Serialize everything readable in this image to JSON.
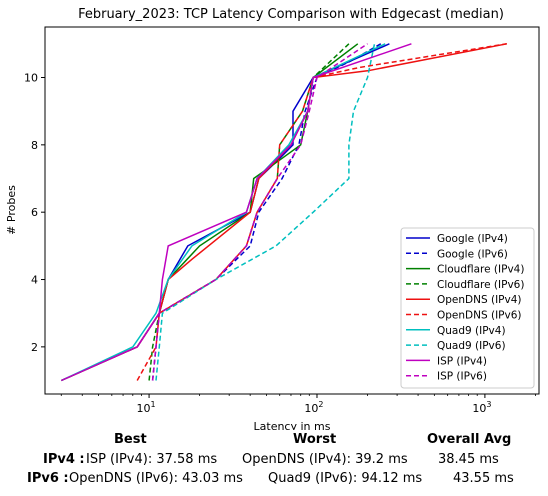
{
  "chart_data": {
    "type": "line",
    "title": "February_2023: TCP Latency Comparison with Edgecast (median)",
    "xlabel": "Latency in ms",
    "ylabel": "# Probes",
    "x_scale": "log",
    "xlim": [
      2.4,
      2100
    ],
    "ylim": [
      0.6,
      11.5
    ],
    "x_ticks": [
      {
        "value": 10,
        "label": "10¹"
      },
      {
        "value": 100,
        "label": "10²"
      },
      {
        "value": 1000,
        "label": "10³"
      }
    ],
    "x_tick_labels": {
      "10": "10",
      "100": "10",
      "1000": "10",
      "exp10": "1",
      "exp100": "2",
      "exp1000": "3"
    },
    "y_ticks": [
      2,
      4,
      6,
      8,
      10
    ],
    "y_tick_labels": [
      "2",
      "4",
      "6",
      "8",
      "10"
    ],
    "grid": false,
    "legend_position": "lower-right",
    "series": [
      {
        "name": "Google (IPv4)",
        "color": "#0000cc",
        "dash": "solid",
        "points": [
          [
            3,
            1
          ],
          [
            8.5,
            2
          ],
          [
            11.5,
            3
          ],
          [
            13,
            4
          ],
          [
            17,
            5
          ],
          [
            40,
            6
          ],
          [
            45,
            7
          ],
          [
            60,
            7.6
          ],
          [
            72,
            8
          ],
          [
            72,
            9
          ],
          [
            95,
            10
          ],
          [
            270,
            11
          ]
        ]
      },
      {
        "name": "Google (IPv6)",
        "color": "#0000cc",
        "dash": "dashed",
        "points": [
          [
            10.5,
            1
          ],
          [
            11,
            2
          ],
          [
            11.5,
            3
          ],
          [
            25,
            4
          ],
          [
            40,
            5
          ],
          [
            45,
            6
          ],
          [
            62,
            7
          ],
          [
            78,
            8
          ],
          [
            85,
            9
          ],
          [
            100,
            10
          ],
          [
            160,
            10.5
          ],
          [
            240,
            11
          ]
        ]
      },
      {
        "name": "Cloudflare (IPv4)",
        "color": "#008000",
        "dash": "solid",
        "points": [
          [
            3,
            1
          ],
          [
            8.5,
            2
          ],
          [
            11.5,
            3
          ],
          [
            13,
            4
          ],
          [
            20,
            5
          ],
          [
            40,
            6
          ],
          [
            42,
            7
          ],
          [
            62,
            7.6
          ],
          [
            80,
            8
          ],
          [
            88,
            9
          ],
          [
            95,
            10
          ],
          [
            175,
            11
          ]
        ]
      },
      {
        "name": "Cloudflare (IPv6)",
        "color": "#008000",
        "dash": "dashed",
        "points": [
          [
            10,
            1
          ],
          [
            10.5,
            2
          ],
          [
            11.5,
            3
          ],
          [
            25,
            4
          ],
          [
            38,
            5
          ],
          [
            44,
            6
          ],
          [
            58,
            7
          ],
          [
            60,
            8
          ],
          [
            82,
            9
          ],
          [
            95,
            10
          ],
          [
            155,
            11
          ]
        ]
      },
      {
        "name": "OpenDNS (IPv4)",
        "color": "#ee1111",
        "dash": "solid",
        "points": [
          [
            3,
            1
          ],
          [
            8.5,
            2
          ],
          [
            11.5,
            3
          ],
          [
            13,
            4
          ],
          [
            18,
            4.6
          ],
          [
            40,
            6
          ],
          [
            45,
            7
          ],
          [
            70,
            8
          ],
          [
            88,
            9
          ],
          [
            95,
            10
          ],
          [
            200,
            10.2
          ],
          [
            1350,
            11
          ]
        ]
      },
      {
        "name": "OpenDNS (IPv6)",
        "color": "#ee1111",
        "dash": "dashed",
        "points": [
          [
            8.5,
            1
          ],
          [
            11,
            2
          ],
          [
            11.5,
            3
          ],
          [
            25,
            4
          ],
          [
            38,
            5
          ],
          [
            44,
            6
          ],
          [
            58,
            7
          ],
          [
            60,
            8
          ],
          [
            82,
            9
          ],
          [
            95,
            10
          ],
          [
            180,
            10.3
          ],
          [
            1350,
            11
          ]
        ]
      },
      {
        "name": "Quad9 (IPv4)",
        "color": "#00bfbf",
        "dash": "solid",
        "points": [
          [
            3,
            1
          ],
          [
            8,
            2
          ],
          [
            11,
            3
          ],
          [
            13,
            4
          ],
          [
            18,
            5
          ],
          [
            38,
            6
          ],
          [
            44,
            7
          ],
          [
            68,
            8
          ],
          [
            88,
            9
          ],
          [
            95,
            10
          ],
          [
            255,
            11
          ]
        ]
      },
      {
        "name": "Quad9 (IPv6)",
        "color": "#00bfbf",
        "dash": "dashed",
        "points": [
          [
            11,
            1
          ],
          [
            11.5,
            2
          ],
          [
            12,
            3
          ],
          [
            25,
            4
          ],
          [
            57,
            5
          ],
          [
            95,
            6
          ],
          [
            155,
            7
          ],
          [
            155,
            8
          ],
          [
            165,
            9
          ],
          [
            200,
            10
          ],
          [
            220,
            11
          ]
        ]
      },
      {
        "name": "ISP (IPv4)",
        "color": "#bf00bf",
        "dash": "solid",
        "points": [
          [
            3,
            1
          ],
          [
            8.5,
            2
          ],
          [
            11.5,
            3
          ],
          [
            12,
            4
          ],
          [
            13,
            5
          ],
          [
            38,
            6
          ],
          [
            44,
            7
          ],
          [
            70,
            8
          ],
          [
            88,
            9
          ],
          [
            95,
            10
          ],
          [
            365,
            11
          ]
        ]
      },
      {
        "name": "ISP (IPv6)",
        "color": "#bf00bf",
        "dash": "dashed",
        "points": [
          [
            10.5,
            1
          ],
          [
            11,
            2
          ],
          [
            11.5,
            3
          ],
          [
            25,
            4
          ],
          [
            38,
            5
          ],
          [
            44,
            6
          ],
          [
            58,
            7
          ],
          [
            80,
            8
          ],
          [
            90,
            9
          ],
          [
            100,
            10
          ],
          [
            200,
            11
          ]
        ]
      }
    ]
  },
  "summary": {
    "headers": {
      "best": "Best",
      "worst": "Worst",
      "overall": "Overall Avg"
    },
    "rows": [
      {
        "label": "IPv4 :",
        "best": "ISP (IPv4): 37.58 ms",
        "worst": "OpenDNS (IPv4): 39.2 ms",
        "overall": "38.45 ms"
      },
      {
        "label": "IPv6 :",
        "best": "OpenDNS (IPv6): 43.03 ms",
        "worst": "Quad9 (IPv6): 94.12 ms",
        "overall": "43.55 ms"
      }
    ]
  }
}
